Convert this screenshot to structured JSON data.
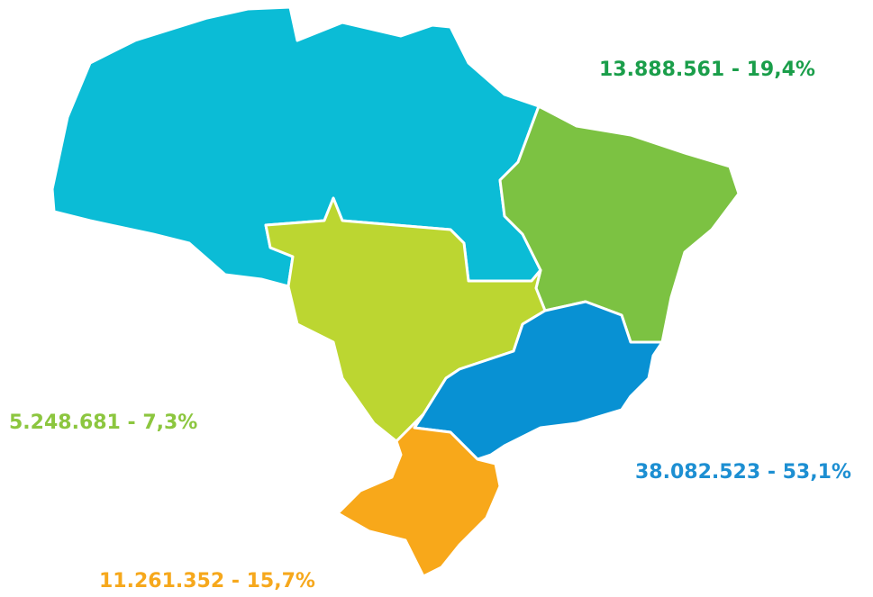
{
  "regions": [
    {
      "label": "13.888.561 - 19,4%",
      "color": "#1a9e4a"
    },
    {
      "label": "5.248.681 - 7,3%",
      "color": "#8cc63f"
    },
    {
      "label": "38.082.523 - 53,1%",
      "color": "#1d8fd2"
    },
    {
      "label": "11.261.352 - 15,7%",
      "color": "#f6a81c"
    }
  ]
}
